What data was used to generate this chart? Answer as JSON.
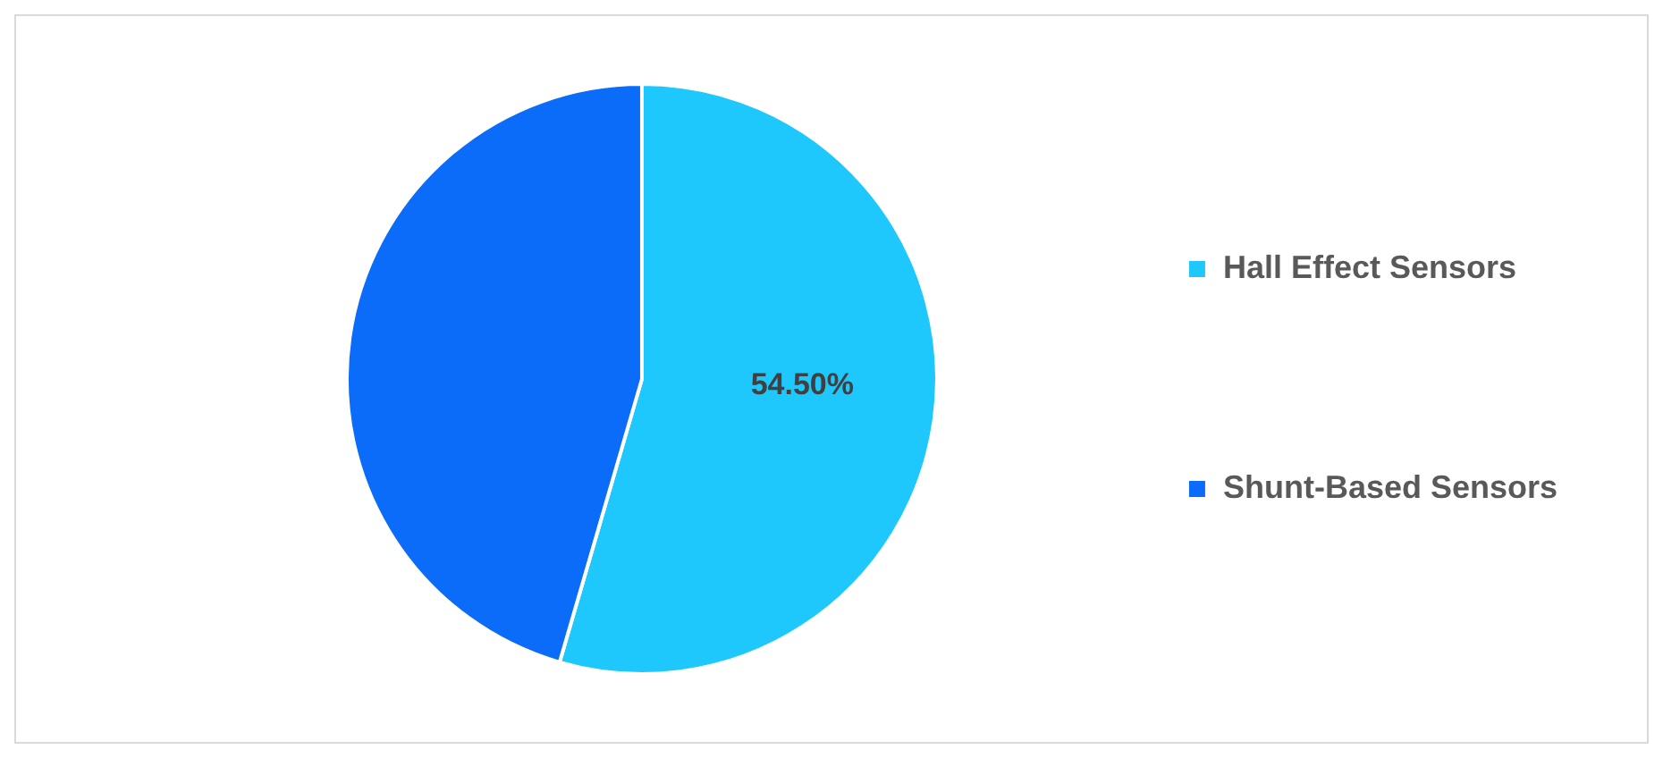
{
  "chart_data": {
    "type": "pie",
    "categories": [
      "Hall Effect Sensors",
      "Shunt-Based Sensors"
    ],
    "values": [
      54.5,
      45.5
    ],
    "colors": [
      "#1ec8fc",
      "#0a6cf9"
    ],
    "value_labels": [
      "54.50%",
      null
    ],
    "legend": "right"
  }
}
